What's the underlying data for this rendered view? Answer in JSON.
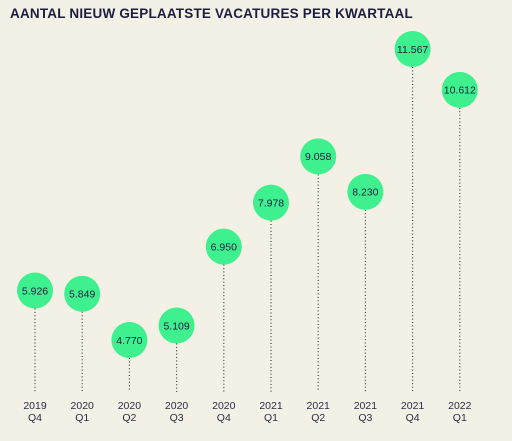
{
  "colors": {
    "background": "#f3f1e6",
    "bubble": "#3ef08e",
    "text": "#1c1d3f",
    "dots": "#3a3a3a"
  },
  "chart_data": {
    "type": "scatter",
    "title": "AANTAL NIEUW GEPLAATSTE VACATURES PER KWARTAAL",
    "categories": [
      [
        "2019",
        "Q4"
      ],
      [
        "2020",
        "Q1"
      ],
      [
        "2020",
        "Q2"
      ],
      [
        "2020",
        "Q3"
      ],
      [
        "2020",
        "Q4"
      ],
      [
        "2021",
        "Q1"
      ],
      [
        "2021",
        "Q2"
      ],
      [
        "2021",
        "Q3"
      ],
      [
        "2021",
        "Q4"
      ],
      [
        "2022",
        "Q1"
      ]
    ],
    "values": [
      5926,
      5849,
      4770,
      5109,
      6950,
      7978,
      9058,
      8230,
      11567,
      10612
    ],
    "labels": [
      "5.926",
      "5.849",
      "4.770",
      "5.109",
      "6.950",
      "7.978",
      "9.058",
      "8.230",
      "11.567",
      "10.612"
    ],
    "grid": false,
    "legend": "none"
  }
}
